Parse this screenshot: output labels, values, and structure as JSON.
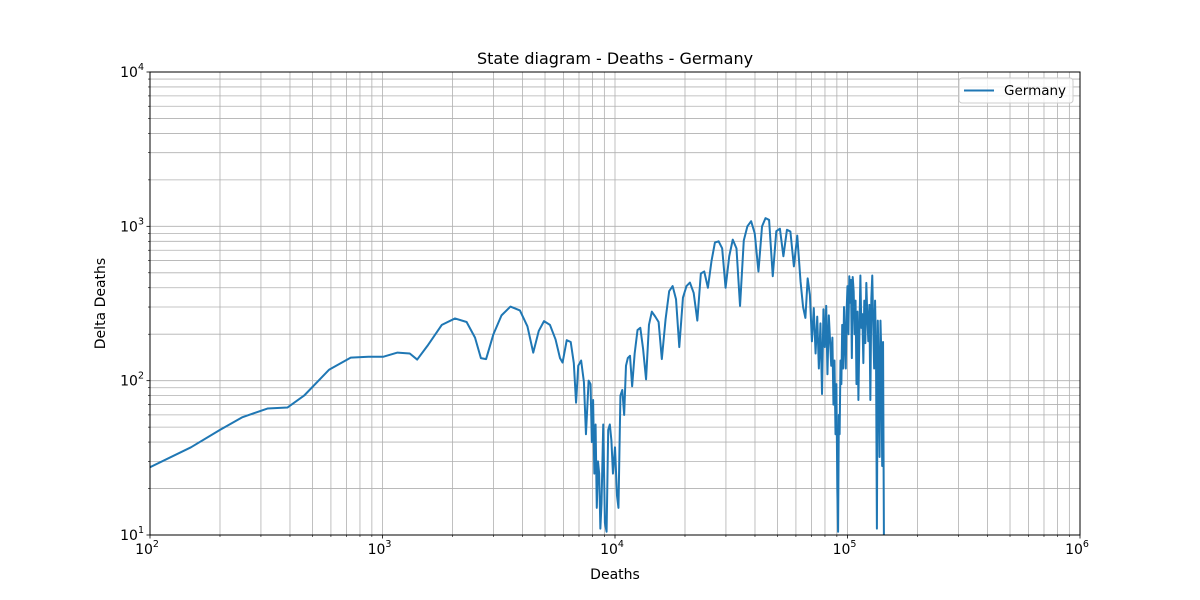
{
  "chart_data": {
    "type": "line",
    "title": "State diagram - Deaths - Germany",
    "xlabel": "Deaths",
    "ylabel": "Delta Deaths",
    "xscale": "log",
    "yscale": "log",
    "xlim": [
      100,
      1000000
    ],
    "ylim": [
      10,
      10000
    ],
    "x_ticks": [
      {
        "base": "10",
        "exp": "2"
      },
      {
        "base": "10",
        "exp": "3"
      },
      {
        "base": "10",
        "exp": "4"
      },
      {
        "base": "10",
        "exp": "5"
      },
      {
        "base": "10",
        "exp": "6"
      }
    ],
    "y_ticks": [
      {
        "base": "10",
        "exp": "1"
      },
      {
        "base": "10",
        "exp": "2"
      },
      {
        "base": "10",
        "exp": "3"
      },
      {
        "base": "10",
        "exp": "4"
      }
    ],
    "grid": "major and minor",
    "legend": {
      "position": "top-right",
      "entries": [
        "Germany"
      ]
    },
    "colors": {
      "series": "#1f77b4",
      "grid": "#b0b0b0"
    },
    "series": [
      {
        "name": "Germany",
        "points": [
          [
            100,
            27.5
          ],
          [
            150,
            37
          ],
          [
            200,
            48
          ],
          [
            250,
            58
          ],
          [
            320,
            66
          ],
          [
            390,
            67
          ],
          [
            460,
            80
          ],
          [
            590,
            118
          ],
          [
            730,
            141
          ],
          [
            870,
            143
          ],
          [
            1010,
            143
          ],
          [
            1160,
            152
          ],
          [
            1310,
            150
          ],
          [
            1410,
            137
          ],
          [
            1560,
            168
          ],
          [
            1800,
            230
          ],
          [
            2050,
            253
          ],
          [
            2300,
            240
          ],
          [
            2500,
            190
          ],
          [
            2650,
            140
          ],
          [
            2790,
            138
          ],
          [
            3000,
            200
          ],
          [
            3250,
            265
          ],
          [
            3550,
            302
          ],
          [
            3900,
            285
          ],
          [
            4200,
            225
          ],
          [
            4450,
            152
          ],
          [
            4700,
            210
          ],
          [
            4950,
            243
          ],
          [
            5250,
            230
          ],
          [
            5550,
            185
          ],
          [
            5800,
            140
          ],
          [
            5950,
            131
          ],
          [
            6200,
            183
          ],
          [
            6450,
            178
          ],
          [
            6650,
            130
          ],
          [
            6800,
            72
          ],
          [
            6950,
            125
          ],
          [
            7150,
            135
          ],
          [
            7350,
            98
          ],
          [
            7500,
            45
          ],
          [
            7700,
            100
          ],
          [
            7850,
            95
          ],
          [
            7950,
            40
          ],
          [
            8050,
            75
          ],
          [
            8150,
            25
          ],
          [
            8250,
            52
          ],
          [
            8350,
            15
          ],
          [
            8450,
            30
          ],
          [
            8550,
            25
          ],
          [
            8650,
            11
          ],
          [
            8750,
            16
          ],
          [
            8900,
            52
          ],
          [
            9050,
            12
          ],
          [
            9200,
            10.5
          ],
          [
            9350,
            48
          ],
          [
            9500,
            52
          ],
          [
            9650,
            41
          ],
          [
            9800,
            25
          ],
          [
            10000,
            37
          ],
          [
            10200,
            18
          ],
          [
            10350,
            15
          ],
          [
            10550,
            80
          ],
          [
            10750,
            87
          ],
          [
            10950,
            60
          ],
          [
            11150,
            125
          ],
          [
            11350,
            140
          ],
          [
            11600,
            145
          ],
          [
            11850,
            92
          ],
          [
            12150,
            150
          ],
          [
            12500,
            213
          ],
          [
            12850,
            220
          ],
          [
            13200,
            162
          ],
          [
            13600,
            102
          ],
          [
            14000,
            230
          ],
          [
            14400,
            280
          ],
          [
            14900,
            260
          ],
          [
            15400,
            240
          ],
          [
            15900,
            138
          ],
          [
            16500,
            250
          ],
          [
            17100,
            380
          ],
          [
            17700,
            410
          ],
          [
            18300,
            337
          ],
          [
            18900,
            165
          ],
          [
            19600,
            345
          ],
          [
            20300,
            410
          ],
          [
            21000,
            432
          ],
          [
            21800,
            370
          ],
          [
            22600,
            245
          ],
          [
            23400,
            495
          ],
          [
            24200,
            510
          ],
          [
            25100,
            400
          ],
          [
            26000,
            595
          ],
          [
            26900,
            785
          ],
          [
            27900,
            800
          ],
          [
            28900,
            720
          ],
          [
            29900,
            400
          ],
          [
            31000,
            640
          ],
          [
            32100,
            820
          ],
          [
            33300,
            720
          ],
          [
            34500,
            305
          ],
          [
            35800,
            810
          ],
          [
            37100,
            1000
          ],
          [
            38500,
            1080
          ],
          [
            39900,
            900
          ],
          [
            41400,
            510
          ],
          [
            42900,
            1000
          ],
          [
            44400,
            1130
          ],
          [
            46000,
            1100
          ],
          [
            47700,
            475
          ],
          [
            49400,
            930
          ],
          [
            51200,
            965
          ],
          [
            53000,
            640
          ],
          [
            54900,
            950
          ],
          [
            56800,
            925
          ],
          [
            58800,
            550
          ],
          [
            60800,
            870
          ],
          [
            62800,
            440
          ],
          [
            64400,
            300
          ],
          [
            65900,
            255
          ],
          [
            67400,
            460
          ],
          [
            68900,
            360
          ],
          [
            70300,
            180
          ],
          [
            71600,
            295
          ],
          [
            72900,
            150
          ],
          [
            74100,
            260
          ],
          [
            75300,
            120
          ],
          [
            76500,
            235
          ],
          [
            77700,
            82
          ],
          [
            78800,
            290
          ],
          [
            79900,
            165
          ],
          [
            81000,
            305
          ],
          [
            82000,
            110
          ],
          [
            83100,
            265
          ],
          [
            84100,
            185
          ],
          [
            85100,
            125
          ],
          [
            86100,
            190
          ],
          [
            87000,
            70
          ],
          [
            87900,
            135
          ],
          [
            88800,
            45
          ],
          [
            89600,
            95
          ],
          [
            90400,
            20
          ],
          [
            91100,
            10.5
          ],
          [
            91800,
            60
          ],
          [
            92500,
            45
          ],
          [
            93300,
            135
          ],
          [
            94100,
            95
          ],
          [
            94900,
            230
          ],
          [
            95800,
            120
          ],
          [
            96600,
            300
          ],
          [
            97400,
            190
          ],
          [
            98300,
            120
          ],
          [
            99100,
            280
          ],
          [
            100000,
            410
          ],
          [
            100900,
            200
          ],
          [
            101800,
            475
          ],
          [
            102600,
            320
          ],
          [
            103500,
            450
          ],
          [
            104400,
            140
          ],
          [
            105300,
            470
          ],
          [
            106300,
            380
          ],
          [
            107300,
            200
          ],
          [
            108300,
            330
          ],
          [
            109300,
            95
          ],
          [
            110400,
            280
          ],
          [
            111400,
            75
          ],
          [
            112500,
            200
          ],
          [
            113600,
            480
          ],
          [
            114700,
            220
          ],
          [
            115800,
            270
          ],
          [
            117000,
            130
          ],
          [
            118100,
            330
          ],
          [
            119300,
            175
          ],
          [
            120500,
            430
          ],
          [
            121700,
            260
          ],
          [
            122900,
            180
          ],
          [
            124200,
            310
          ],
          [
            125400,
            75
          ],
          [
            126600,
            340
          ],
          [
            127800,
            480
          ],
          [
            129000,
            230
          ],
          [
            130200,
            120
          ],
          [
            131400,
            330
          ],
          [
            132600,
            160
          ],
          [
            133800,
            11
          ],
          [
            135000,
            245
          ],
          [
            136200,
            120
          ],
          [
            137400,
            32
          ],
          [
            138600,
            245
          ],
          [
            139800,
            150
          ],
          [
            141000,
            28
          ],
          [
            142200,
            178
          ],
          [
            143400,
            10
          ]
        ]
      }
    ]
  }
}
